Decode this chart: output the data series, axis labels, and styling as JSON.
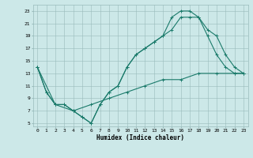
{
  "title": "",
  "xlabel": "Humidex (Indice chaleur)",
  "background_color": "#cce8e8",
  "grid_color": "#99bbbb",
  "line_color": "#1a7a6a",
  "xlim": [
    -0.5,
    23.5
  ],
  "ylim": [
    4.5,
    24.0
  ],
  "xticks": [
    0,
    1,
    2,
    3,
    4,
    5,
    6,
    7,
    8,
    9,
    10,
    11,
    12,
    13,
    14,
    15,
    16,
    17,
    18,
    19,
    20,
    21,
    22,
    23
  ],
  "yticks": [
    5,
    7,
    9,
    11,
    13,
    15,
    17,
    19,
    21,
    23
  ],
  "curve1_x": [
    0,
    1,
    2,
    3,
    4,
    5,
    6,
    7,
    8,
    9,
    10,
    11,
    12,
    13,
    14,
    15,
    16,
    17,
    18,
    19,
    20,
    21,
    22,
    23
  ],
  "curve1_y": [
    14,
    10,
    8,
    8,
    7,
    6,
    5,
    8,
    10,
    11,
    14,
    16,
    17,
    18,
    19,
    22,
    23,
    23,
    22,
    20,
    19,
    16,
    14,
    13
  ],
  "curve2_x": [
    0,
    1,
    2,
    3,
    4,
    5,
    6,
    7,
    8,
    9,
    10,
    11,
    12,
    13,
    14,
    15,
    16,
    17,
    18,
    19,
    20,
    21,
    22,
    23
  ],
  "curve2_y": [
    14,
    10,
    8,
    8,
    7,
    6,
    5,
    8,
    10,
    11,
    14,
    16,
    17,
    18,
    19,
    20,
    22,
    22,
    22,
    19,
    16,
    14,
    13,
    13
  ],
  "curve3_x": [
    0,
    2,
    4,
    6,
    8,
    10,
    12,
    14,
    16,
    18,
    20,
    22,
    23
  ],
  "curve3_y": [
    14,
    8,
    7,
    8,
    9,
    10,
    11,
    12,
    12,
    13,
    13,
    13,
    13
  ],
  "linewidth": 0.8,
  "markersize": 2.5,
  "xlabel_fontsize": 5.5,
  "tick_fontsize": 4.5
}
